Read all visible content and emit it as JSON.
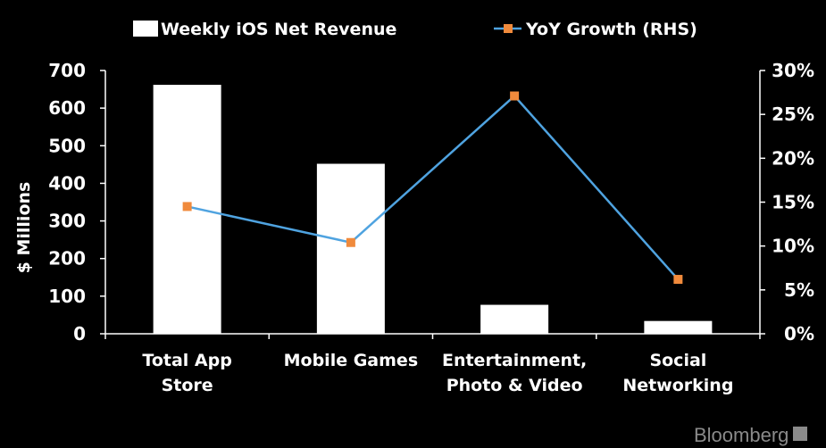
{
  "chart_data": {
    "type": "bar",
    "categories": [
      [
        "Total App",
        "Store"
      ],
      [
        "Mobile Games"
      ],
      [
        "Entertainment,",
        "Photo & Video"
      ],
      [
        "Social",
        "Networking"
      ]
    ],
    "series": [
      {
        "name": "Weekly iOS Net Revenue",
        "type": "bar",
        "axis": "left",
        "color": "#ffffff",
        "values": [
          662,
          452,
          77,
          34
        ]
      },
      {
        "name": "YoY Growth (RHS)",
        "type": "line",
        "axis": "right",
        "color": "#4fa3e0",
        "marker_color": "#f08a3c",
        "values": [
          14.5,
          10.4,
          27.1,
          6.2
        ]
      }
    ],
    "ylabel": "$ Millions",
    "ylim": [
      0,
      700
    ],
    "yticks": [
      "0",
      "100",
      "200",
      "300",
      "400",
      "500",
      "600",
      "700"
    ],
    "y2lim": [
      0,
      30
    ],
    "y2ticks": [
      "0%",
      "5%",
      "10%",
      "15%",
      "20%",
      "25%",
      "30%"
    ],
    "legend": "top",
    "grid": false
  },
  "brand": "Bloomberg",
  "colors": {
    "background": "#000000",
    "bar": "#ffffff",
    "line": "#4fa3e0",
    "marker": "#f08a3c",
    "axis": "#ffffff"
  }
}
